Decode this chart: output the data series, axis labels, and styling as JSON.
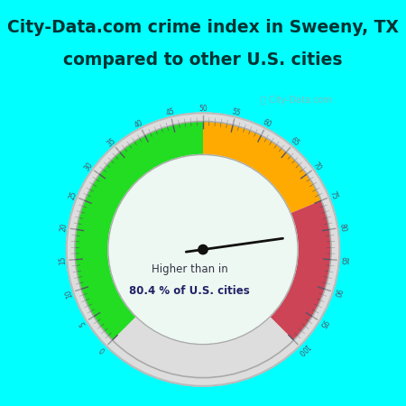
{
  "title_line1": "City-Data.com crime index in Sweeny, TX",
  "title_line2": "compared to other U.S. cities",
  "title_fontsize": 13.5,
  "title_color": "#003333",
  "title_bg_color": "#00ffff",
  "gauge_area_bg": "#e8f5ee",
  "gauge_center_color": "#eef8f2",
  "value": 80.4,
  "scale_min": 0,
  "scale_max": 100,
  "green_range": [
    0,
    50
  ],
  "orange_range": [
    50,
    75
  ],
  "red_range": [
    75,
    100
  ],
  "green_color": "#22dd22",
  "orange_color": "#ffaa00",
  "red_color": "#cc4455",
  "needle_color": "#111111",
  "tick_color_on_gauge": "#555566",
  "tick_color_outer": "#999999",
  "label_color": "#555566",
  "watermark": "City-Data.com",
  "text_line1": "Higher than in",
  "text_line2": "80.4 % of U.S. cities",
  "text_color1": "#333344",
  "text_color2": "#222266",
  "outer_ring_color": "#cccccc",
  "outer_ring_bg": "#e0e0e0"
}
